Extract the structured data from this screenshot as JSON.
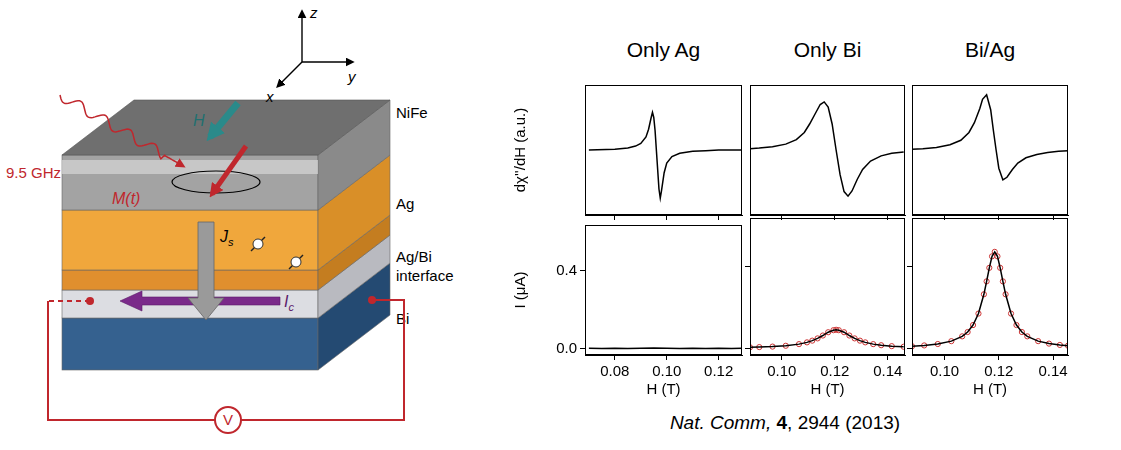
{
  "diagram": {
    "frequency_label": "9.5 GHz",
    "field_label": "H",
    "magnetization_label": "M(t)",
    "spin_current": {
      "symbol": "J",
      "subscript": "s"
    },
    "charge_current": {
      "symbol": "I",
      "subscript": "c"
    },
    "voltmeter": "V",
    "axes": {
      "x": "x",
      "y": "y",
      "z": "z"
    },
    "layers": [
      "NiFe",
      "Ag",
      "Ag/Bi interface",
      "Bi"
    ]
  },
  "chart_data": [
    {
      "type": "line",
      "title": "Only Ag",
      "y_label": "dχ''/dH (a.u.)",
      "x": [
        0.07,
        0.08,
        0.085,
        0.088,
        0.09,
        0.092,
        0.093,
        0.094,
        0.0945,
        0.095,
        0.0955,
        0.096,
        0.0965,
        0.097,
        0.0975,
        0.098,
        0.099,
        0.1,
        0.102,
        0.105,
        0.11,
        0.115,
        0.12,
        0.129
      ],
      "series": [
        {
          "color": "#000000",
          "line_style": "solid",
          "values": [
            0,
            0.01,
            0.03,
            0.06,
            0.1,
            0.2,
            0.32,
            0.5,
            0.58,
            0.5,
            0.3,
            0.0,
            -0.3,
            -0.6,
            -0.74,
            -0.62,
            -0.35,
            -0.2,
            -0.1,
            -0.05,
            -0.02,
            -0.01,
            0,
            0
          ]
        }
      ],
      "xlim": [
        0.0685,
        0.129
      ],
      "ylim": [
        -1,
        1
      ],
      "xticks": [
        0.08,
        {
          "value": 0.1,
          "label": "0.10"
        },
        0.12
      ],
      "grid": false,
      "tick_labels": false
    },
    {
      "type": "line",
      "title": "Only Bi",
      "x": [
        0.088,
        0.0915,
        0.0965,
        0.1015,
        0.1055,
        0.1085,
        0.1105,
        0.1125,
        0.1145,
        0.116,
        0.1175,
        0.119,
        0.1205,
        0.122,
        0.1235,
        0.125,
        0.1265,
        0.1285,
        0.1305,
        0.1335,
        0.1375,
        0.1415,
        0.146
      ],
      "series": [
        {
          "color": "#000000",
          "line_style": "solid",
          "values": [
            0.02,
            0.03,
            0.05,
            0.09,
            0.16,
            0.27,
            0.4,
            0.55,
            0.7,
            0.74,
            0.66,
            0.4,
            0.0,
            -0.38,
            -0.64,
            -0.71,
            -0.63,
            -0.45,
            -0.3,
            -0.17,
            -0.09,
            -0.05,
            -0.03
          ]
        }
      ],
      "xlim": [
        0.088,
        0.1465
      ],
      "ylim": [
        -1,
        1
      ],
      "xticks": [
        {
          "value": 0.1,
          "label": "0.10"
        },
        0.12,
        0.14
      ],
      "grid": false,
      "tick_labels": false
    },
    {
      "type": "line",
      "title": "Bi/Ag",
      "x": [
        0.088,
        0.092,
        0.097,
        0.102,
        0.106,
        0.109,
        0.111,
        0.113,
        0.114,
        0.1155,
        0.117,
        0.118,
        0.119,
        0.12,
        0.1215,
        0.123,
        0.125,
        0.127,
        0.13,
        0.134,
        0.138,
        0.142,
        0.1455
      ],
      "series": [
        {
          "color": "#000000",
          "line_style": "solid",
          "values": [
            0.01,
            0.02,
            0.04,
            0.08,
            0.15,
            0.27,
            0.42,
            0.64,
            0.78,
            0.85,
            0.62,
            0.3,
            0.0,
            -0.28,
            -0.46,
            -0.42,
            -0.3,
            -0.2,
            -0.12,
            -0.07,
            -0.04,
            -0.02,
            -0.01
          ]
        }
      ],
      "xlim": [
        0.088,
        0.1455
      ],
      "ylim": [
        -1,
        1
      ],
      "xticks": [
        {
          "value": 0.1,
          "label": "0.10"
        },
        0.12,
        0.14
      ],
      "grid": false,
      "tick_labels": false
    },
    {
      "type": "line",
      "x_label": "H (T)",
      "y_label": "I (μA)",
      "x": [
        0.07,
        0.075,
        0.08,
        0.085,
        0.09,
        0.095,
        0.1,
        0.105,
        0.11,
        0.115,
        0.12,
        0.125,
        0.129
      ],
      "series": [
        {
          "color": "#000000",
          "line_style": "solid",
          "values": [
            0.002,
            0.001,
            0.002,
            0.001,
            0.002,
            0.003,
            0.002,
            0.001,
            0.002,
            0.001,
            0.002,
            0.001,
            0.002
          ]
        }
      ],
      "xlim": [
        0.0685,
        0.129
      ],
      "ylim": [
        -0.033,
        0.635
      ],
      "xticks": [
        0.08,
        {
          "value": 0.1,
          "label": "0.10"
        },
        0.12
      ],
      "yticks": [
        {
          "value": 0,
          "label": "0.0"
        },
        0.4
      ],
      "grid": false
    },
    {
      "type": "line",
      "x_label": "H (T)",
      "x": [
        0.088,
        0.0915,
        0.0965,
        0.1015,
        0.1065,
        0.1095,
        0.1115,
        0.1135,
        0.1155,
        0.1175,
        0.1195,
        0.1205,
        0.1215,
        0.1235,
        0.1255,
        0.1275,
        0.1295,
        0.1315,
        0.1345,
        0.1375,
        0.1415,
        0.146
      ],
      "series": [
        {
          "color": "#cc3333",
          "marker": "circle",
          "values": [
            0.0045,
            0.0056,
            0.008,
            0.012,
            0.02,
            0.0286,
            0.037,
            0.048,
            0.062,
            0.078,
            0.088,
            0.09,
            0.088,
            0.078,
            0.062,
            0.048,
            0.037,
            0.0286,
            0.02,
            0.0147,
            0.0102,
            0.0072
          ]
        },
        {
          "color": "#000000",
          "line_style": "solid",
          "values": [
            0.0045,
            0.0056,
            0.008,
            0.012,
            0.02,
            0.0286,
            0.037,
            0.048,
            0.062,
            0.078,
            0.088,
            0.09,
            0.088,
            0.078,
            0.062,
            0.048,
            0.037,
            0.0286,
            0.02,
            0.0147,
            0.0102,
            0.0072
          ]
        }
      ],
      "xlim": [
        0.088,
        0.1465
      ],
      "ylim": [
        -0.033,
        0.635
      ],
      "xticks": [
        {
          "value": 0.1,
          "label": "0.10"
        },
        0.12,
        0.14
      ],
      "yticks": [
        {
          "value": 0,
          "label": "0.0"
        },
        0.4
      ],
      "grid": false,
      "tick_labels": "x"
    },
    {
      "type": "line",
      "x_label": "H (T)",
      "x": [
        0.088,
        0.0925,
        0.0975,
        0.1025,
        0.1065,
        0.1085,
        0.1105,
        0.1125,
        0.1145,
        0.1155,
        0.1165,
        0.1175,
        0.1185,
        0.1195,
        0.1205,
        0.1215,
        0.1225,
        0.1245,
        0.1265,
        0.1285,
        0.1305,
        0.1345,
        0.1385,
        0.1425,
        0.1455
      ],
      "series": [
        {
          "color": "#cc3333",
          "marker": "circle",
          "values": [
            0.0098,
            0.0137,
            0.0206,
            0.0345,
            0.058,
            0.079,
            0.113,
            0.169,
            0.263,
            0.326,
            0.392,
            0.448,
            0.47,
            0.448,
            0.392,
            0.326,
            0.263,
            0.169,
            0.113,
            0.079,
            0.058,
            0.0345,
            0.0226,
            0.016,
            0.0125
          ]
        },
        {
          "color": "#000000",
          "line_style": "solid",
          "values": [
            0.0098,
            0.0137,
            0.0206,
            0.0345,
            0.058,
            0.079,
            0.113,
            0.169,
            0.263,
            0.326,
            0.392,
            0.448,
            0.47,
            0.448,
            0.392,
            0.326,
            0.263,
            0.169,
            0.113,
            0.079,
            0.058,
            0.0345,
            0.0226,
            0.016,
            0.0125
          ]
        }
      ],
      "xlim": [
        0.088,
        0.1455
      ],
      "ylim": [
        -0.033,
        0.635
      ],
      "xticks": [
        {
          "value": 0.1,
          "label": "0.10"
        },
        0.12,
        0.14
      ],
      "yticks": [
        {
          "value": 0,
          "label": "0.0"
        },
        0.4
      ],
      "grid": false,
      "tick_labels": "x"
    }
  ],
  "citation": {
    "journal": "Nat. Comm,",
    "volume": "4",
    "rest": ", 2944 (2013)"
  }
}
